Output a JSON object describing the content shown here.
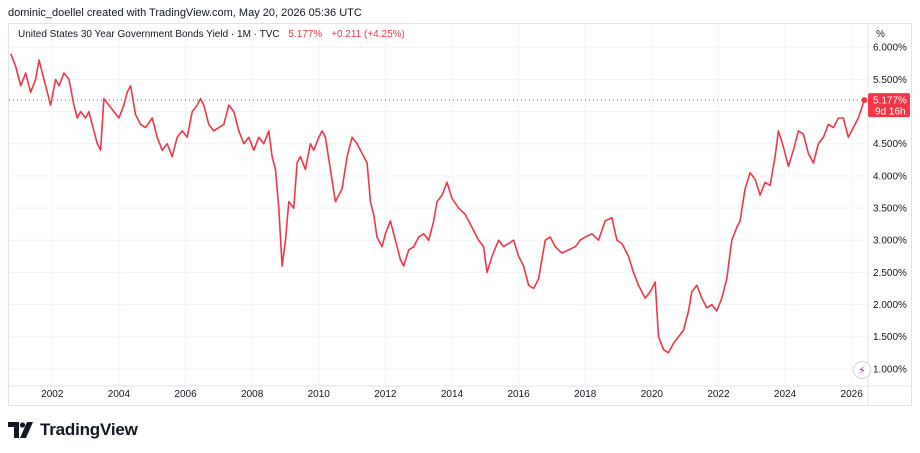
{
  "header": {
    "attribution": "dominic_doellel created with TradingView.com, May 20, 2026 05:36 UTC"
  },
  "legend": {
    "symbol": "United States 30 Year Government Bonds Yield · 1M · TVC",
    "price": "5.177%",
    "change": "+0.211 (+4.25%)"
  },
  "price_tag": {
    "value": "5.177%",
    "countdown": "9d 16h"
  },
  "brand": {
    "name": "TradingView",
    "logo": "tradingview-logo-icon"
  },
  "colors": {
    "line": "#f23645",
    "grid": "#f0f3fa",
    "text": "#131722",
    "border": "#e0e3eb"
  },
  "chart_data": {
    "type": "line",
    "title": "United States 30 Year Government Bonds Yield · 1M · TVC",
    "xlabel": "",
    "ylabel": "",
    "y_unit": "%",
    "x_range": [
      2000.7,
      2026.4
    ],
    "ylim": [
      0.75,
      6.05
    ],
    "y_ticks": [
      "6.000%",
      "5.500%",
      "5.000%",
      "4.500%",
      "4.000%",
      "3.500%",
      "3.000%",
      "2.500%",
      "2.000%",
      "1.500%",
      "1.000%"
    ],
    "y_tick_values": [
      6.0,
      5.5,
      5.0,
      4.5,
      4.0,
      3.5,
      3.0,
      2.5,
      2.0,
      1.5,
      1.0
    ],
    "x_ticks": [
      "2002",
      "2004",
      "2006",
      "2008",
      "2010",
      "2012",
      "2014",
      "2016",
      "2018",
      "2020",
      "2022",
      "2024",
      "2026"
    ],
    "x_tick_values": [
      2002,
      2004,
      2006,
      2008,
      2010,
      2012,
      2014,
      2016,
      2018,
      2020,
      2022,
      2024,
      2026
    ],
    "series": [
      {
        "x": [
          2000.75,
          2000.9,
          2001.05,
          2001.2,
          2001.35,
          2001.5,
          2001.6,
          2001.75,
          2001.85,
          2001.95,
          2002.1,
          2002.2,
          2002.35,
          2002.5,
          2002.65,
          2002.75,
          2002.85,
          2003.0,
          2003.1,
          2003.25,
          2003.35,
          2003.45,
          2003.55,
          2003.7,
          2003.85,
          2004.0,
          2004.15,
          2004.25,
          2004.35,
          2004.5,
          2004.65,
          2004.8,
          2005.0,
          2005.15,
          2005.3,
          2005.45,
          2005.6,
          2005.75,
          2005.9,
          2006.05,
          2006.2,
          2006.35,
          2006.45,
          2006.55,
          2006.7,
          2006.85,
          2007.0,
          2007.15,
          2007.3,
          2007.45,
          2007.6,
          2007.75,
          2007.9,
          2008.05,
          2008.2,
          2008.35,
          2008.5,
          2008.6,
          2008.7,
          2008.8,
          2008.9,
          2009.0,
          2009.1,
          2009.25,
          2009.35,
          2009.45,
          2009.6,
          2009.75,
          2009.85,
          2010.0,
          2010.1,
          2010.2,
          2010.35,
          2010.5,
          2010.6,
          2010.7,
          2010.85,
          2011.0,
          2011.15,
          2011.3,
          2011.45,
          2011.55,
          2011.65,
          2011.75,
          2011.9,
          2012.0,
          2012.15,
          2012.3,
          2012.45,
          2012.55,
          2012.7,
          2012.85,
          2013.0,
          2013.15,
          2013.3,
          2013.45,
          2013.55,
          2013.7,
          2013.85,
          2014.0,
          2014.2,
          2014.4,
          2014.6,
          2014.8,
          2014.95,
          2015.05,
          2015.2,
          2015.4,
          2015.55,
          2015.7,
          2015.85,
          2016.0,
          2016.15,
          2016.3,
          2016.45,
          2016.6,
          2016.8,
          2016.95,
          2017.1,
          2017.3,
          2017.5,
          2017.7,
          2017.85,
          2018.0,
          2018.2,
          2018.4,
          2018.6,
          2018.8,
          2018.95,
          2019.1,
          2019.3,
          2019.45,
          2019.6,
          2019.8,
          2019.95,
          2020.1,
          2020.2,
          2020.35,
          2020.5,
          2020.65,
          2020.8,
          2020.95,
          2021.1,
          2021.2,
          2021.35,
          2021.5,
          2021.65,
          2021.8,
          2021.95,
          2022.1,
          2022.25,
          2022.4,
          2022.55,
          2022.65,
          2022.8,
          2022.95,
          2023.1,
          2023.25,
          2023.4,
          2023.55,
          2023.7,
          2023.8,
          2023.95,
          2024.1,
          2024.25,
          2024.4,
          2024.55,
          2024.7,
          2024.85,
          2025.0,
          2025.15,
          2025.3,
          2025.45,
          2025.6,
          2025.75,
          2025.9,
          2026.05,
          2026.2,
          2026.38
        ],
        "y": [
          5.9,
          5.7,
          5.4,
          5.6,
          5.3,
          5.5,
          5.8,
          5.5,
          5.3,
          5.1,
          5.5,
          5.4,
          5.6,
          5.5,
          5.1,
          4.9,
          5.0,
          4.9,
          5.0,
          4.7,
          4.5,
          4.4,
          5.2,
          5.1,
          5.0,
          4.9,
          5.1,
          5.3,
          5.4,
          4.95,
          4.8,
          4.75,
          4.9,
          4.6,
          4.4,
          4.5,
          4.3,
          4.6,
          4.7,
          4.6,
          5.0,
          5.1,
          5.2,
          5.1,
          4.8,
          4.7,
          4.75,
          4.8,
          5.1,
          5.0,
          4.7,
          4.5,
          4.6,
          4.4,
          4.6,
          4.5,
          4.7,
          4.3,
          4.1,
          3.5,
          2.6,
          3.0,
          3.6,
          3.5,
          4.2,
          4.3,
          4.1,
          4.5,
          4.4,
          4.6,
          4.7,
          4.6,
          4.1,
          3.6,
          3.7,
          3.8,
          4.3,
          4.6,
          4.5,
          4.35,
          4.2,
          3.6,
          3.4,
          3.05,
          2.9,
          3.1,
          3.3,
          3.0,
          2.7,
          2.6,
          2.85,
          2.9,
          3.05,
          3.1,
          3.0,
          3.3,
          3.6,
          3.7,
          3.9,
          3.65,
          3.5,
          3.4,
          3.2,
          3.0,
          2.9,
          2.5,
          2.75,
          3.0,
          2.9,
          2.95,
          3.0,
          2.75,
          2.6,
          2.3,
          2.25,
          2.4,
          3.0,
          3.05,
          2.9,
          2.8,
          2.85,
          2.9,
          3.0,
          3.05,
          3.1,
          3.0,
          3.3,
          3.35,
          3.0,
          2.95,
          2.75,
          2.5,
          2.3,
          2.1,
          2.2,
          2.35,
          1.5,
          1.3,
          1.25,
          1.4,
          1.5,
          1.6,
          1.9,
          2.2,
          2.3,
          2.1,
          1.95,
          2.0,
          1.9,
          2.1,
          2.4,
          3.0,
          3.2,
          3.3,
          3.8,
          4.05,
          3.95,
          3.7,
          3.9,
          3.85,
          4.3,
          4.7,
          4.45,
          4.15,
          4.4,
          4.7,
          4.65,
          4.35,
          4.2,
          4.5,
          4.6,
          4.8,
          4.75,
          4.9,
          4.9,
          4.6,
          4.75,
          4.9,
          5.177
        ]
      }
    ]
  }
}
